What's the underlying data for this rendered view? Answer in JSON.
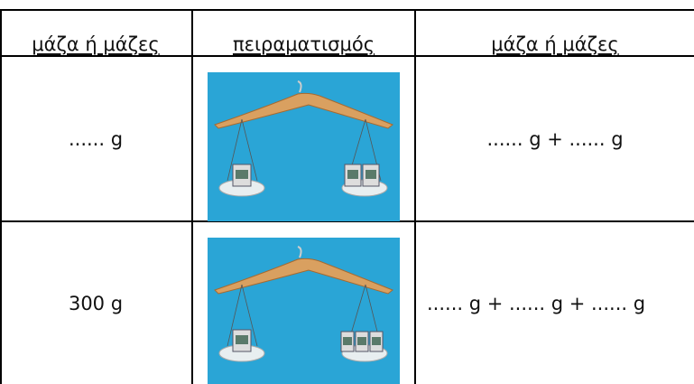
{
  "table": {
    "header": [
      "μάζα ή μάζες",
      "πειραματισμός",
      "μάζα ή μάζες"
    ],
    "rows": [
      [
        "...... g",
        "...... g + ...... g"
      ],
      [
        "300 g",
        "...... g + ...... g + ...... g"
      ]
    ]
  }
}
